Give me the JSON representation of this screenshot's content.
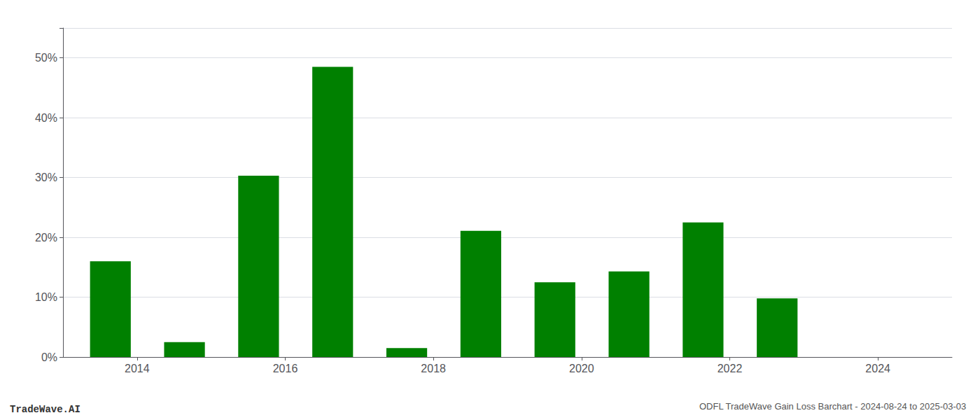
{
  "chart_data": {
    "type": "bar",
    "title": "ODFL TradeWave Gain Loss Barchart - 2024-08-24 to 2025-03-03",
    "annotations": [
      "TradeWave.AI"
    ],
    "x": [
      2013.64,
      2014.64,
      2015.64,
      2016.64,
      2017.64,
      2018.64,
      2019.64,
      2020.64,
      2021.64,
      2022.64
    ],
    "values": [
      0.16,
      0.025,
      0.303,
      0.485,
      0.015,
      0.211,
      0.125,
      0.143,
      0.225,
      0.098
    ],
    "color": "#008000",
    "xlim": [
      2013.0,
      2025.0
    ],
    "xticks": [
      2014,
      2016,
      2018,
      2020,
      2022,
      2024
    ],
    "ylim": [
      0.0,
      0.55
    ],
    "yticks": [
      {
        "value": 0.0,
        "label": "0%"
      },
      {
        "value": 0.1,
        "label": "10%"
      },
      {
        "value": 0.2,
        "label": "20%"
      },
      {
        "value": 0.3,
        "label": "30%"
      },
      {
        "value": 0.4,
        "label": "40%"
      },
      {
        "value": 0.5,
        "label": "50%"
      }
    ],
    "grid": true
  }
}
